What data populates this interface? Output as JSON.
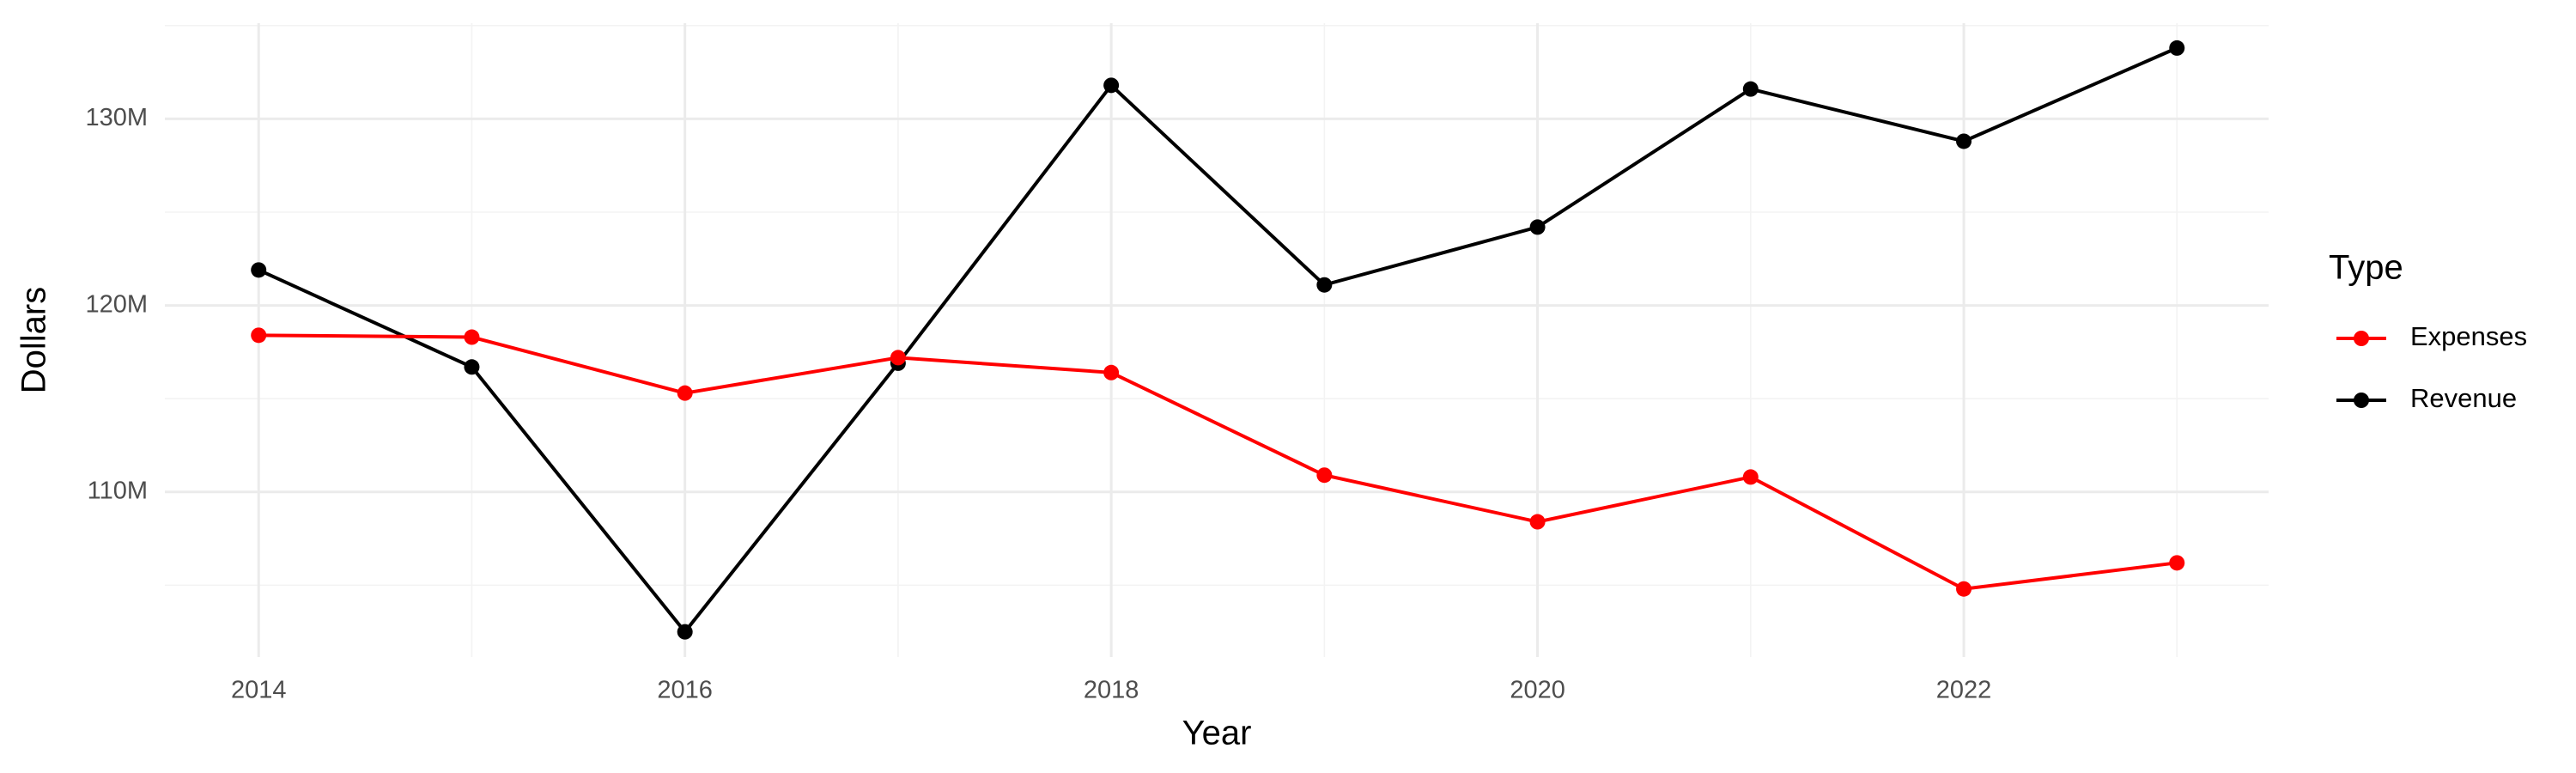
{
  "chart_data": {
    "type": "line",
    "x_label": "Year",
    "y_label": "Dollars",
    "legend_title": "Type",
    "x": [
      2014,
      2015,
      2016,
      2017,
      2018,
      2019,
      2020,
      2021,
      2022,
      2023
    ],
    "series": [
      {
        "name": "Expenses",
        "color": "#ff0000",
        "values": [
          118400000,
          118300000,
          115300000,
          117200000,
          116400000,
          110900000,
          108400000,
          110800000,
          104800000,
          106200000
        ]
      },
      {
        "name": "Revenue",
        "color": "#000000",
        "values": [
          121900000,
          116700000,
          102500000,
          116900000,
          131800000,
          121100000,
          124200000,
          131600000,
          128800000,
          133800000
        ]
      }
    ],
    "xlim": [
      2013.56,
      2023.43
    ],
    "xticks": [
      2014,
      2016,
      2018,
      2020,
      2022
    ],
    "ylim": [
      101150000,
      135130000
    ],
    "yticks": [
      {
        "value": 110000000,
        "label": "110M"
      },
      {
        "value": 120000000,
        "label": "120M"
      },
      {
        "value": 130000000,
        "label": "130M"
      }
    ],
    "grid": true,
    "minor_grid": true,
    "legend_position": "right"
  }
}
